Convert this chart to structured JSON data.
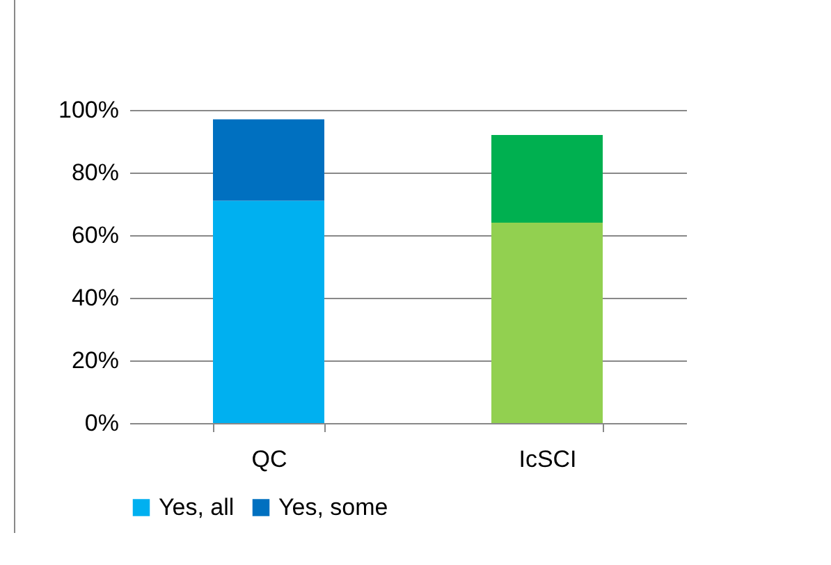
{
  "chart_data": {
    "type": "bar",
    "stacked": true,
    "categories": [
      "QC",
      "IcSCI"
    ],
    "series": [
      {
        "name": "Yes, all",
        "color": "#00b0f0",
        "colors": [
          "#00b0f0",
          "#92d050"
        ],
        "values": [
          71,
          64
        ]
      },
      {
        "name": "Yes, some",
        "color": "#0070c0",
        "colors": [
          "#0070c0",
          "#00b050"
        ],
        "values": [
          26,
          28
        ]
      }
    ],
    "ylim": [
      0,
      100
    ],
    "yticks": [
      {
        "value": 0,
        "label": "0%"
      },
      {
        "value": 20,
        "label": "20%"
      },
      {
        "value": 40,
        "label": "40%"
      },
      {
        "value": 60,
        "label": "60%"
      },
      {
        "value": 80,
        "label": "80%"
      },
      {
        "value": 100,
        "label": "100%"
      }
    ],
    "grid": "y",
    "legend": "bottom"
  }
}
